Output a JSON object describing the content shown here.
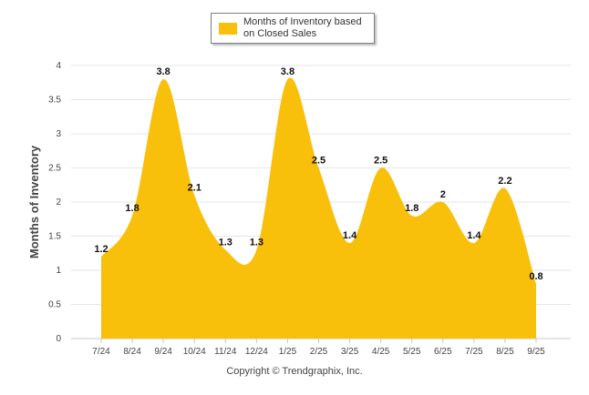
{
  "chart_data": {
    "type": "area",
    "title": "",
    "xlabel": "",
    "ylabel": "Months of Inventory",
    "ylim": [
      0,
      4
    ],
    "yticks": [
      "0",
      "0.5",
      "1",
      "1.5",
      "2",
      "2.5",
      "3",
      "3.5",
      "4"
    ],
    "grid": true,
    "legend_position": "top-center",
    "categories": [
      "7/24",
      "8/24",
      "9/24",
      "10/24",
      "11/24",
      "12/24",
      "1/25",
      "2/25",
      "3/25",
      "4/25",
      "5/25",
      "6/25",
      "7/25",
      "8/25",
      "9/25"
    ],
    "series": [
      {
        "name": "Months of Inventory based on Closed Sales",
        "color": "#f8c00b",
        "values": [
          1.2,
          1.8,
          3.8,
          2.1,
          1.3,
          1.3,
          3.8,
          2.5,
          1.4,
          2.5,
          1.8,
          2,
          1.4,
          2.2,
          0.8
        ]
      }
    ]
  },
  "legend": {
    "label": "Months of Inventory based on Closed Sales",
    "color": "#f8c00b"
  },
  "caption": "Copyright © Trendgraphix, Inc."
}
